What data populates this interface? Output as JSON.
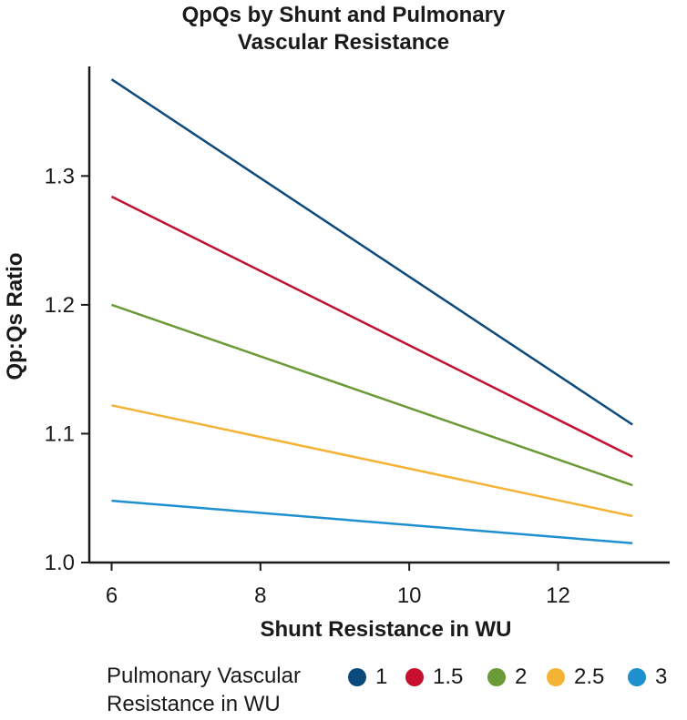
{
  "chart_data": {
    "type": "line",
    "title_line1": "QpQs by Shunt and Pulmonary",
    "title_line2": "Vascular Resistance",
    "xlabel": "Shunt Resistance in WU",
    "ylabel": "Qp:Qs Ratio",
    "xlim": [
      5.7,
      13.5
    ],
    "ylim": [
      1.0,
      1.385
    ],
    "xticks": [
      6,
      8,
      10,
      12
    ],
    "yticks": [
      1.0,
      1.1,
      1.2,
      1.3
    ],
    "ytick_labels": [
      "1.0",
      "1.1",
      "1.2",
      "1.3"
    ],
    "legend_title_line1": "Pulmonary Vascular",
    "legend_title_line2": "Resistance in WU",
    "series": [
      {
        "name": "1",
        "color": "#0d4a7c",
        "x": [
          6,
          13
        ],
        "y": [
          1.375,
          1.107
        ]
      },
      {
        "name": "1.5",
        "color": "#c8102e",
        "x": [
          6,
          13
        ],
        "y": [
          1.284,
          1.082
        ]
      },
      {
        "name": "2",
        "color": "#6a9a35",
        "x": [
          6,
          13
        ],
        "y": [
          1.2,
          1.06
        ]
      },
      {
        "name": "2.5",
        "color": "#f5b335",
        "x": [
          6,
          13
        ],
        "y": [
          1.122,
          1.036
        ]
      },
      {
        "name": "3",
        "color": "#1e8fcf",
        "x": [
          6,
          13
        ],
        "y": [
          1.048,
          1.015
        ]
      }
    ]
  }
}
